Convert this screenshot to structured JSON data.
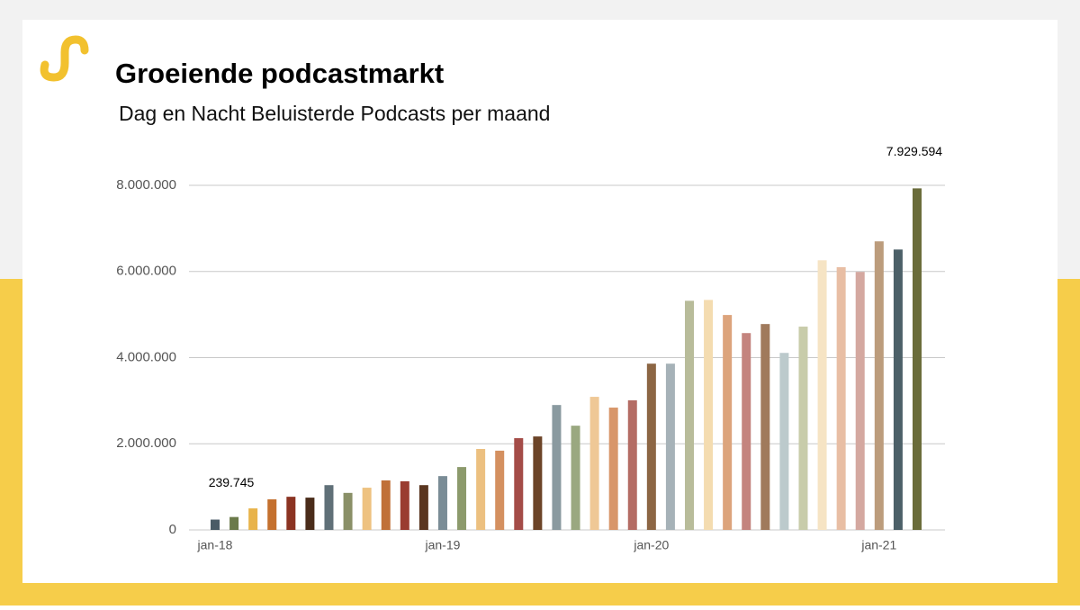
{
  "chart_data": {
    "type": "bar",
    "title": "Groeiende podcastmarkt",
    "subtitle": "Dag en Nacht Beluisterde Podcasts per maand",
    "categories": [
      "jan-18",
      null,
      null,
      null,
      null,
      null,
      null,
      null,
      null,
      null,
      null,
      null,
      "jan-19",
      null,
      null,
      null,
      null,
      null,
      null,
      null,
      null,
      null,
      null,
      "jan-20",
      null,
      null,
      null,
      null,
      null,
      null,
      null,
      null,
      null,
      null,
      null,
      "jan-21",
      null,
      null
    ],
    "values": [
      239745,
      300000,
      500000,
      710000,
      770000,
      750000,
      1040000,
      860000,
      980000,
      1150000,
      1130000,
      1040000,
      1250000,
      1460000,
      1880000,
      1840000,
      2130000,
      2170000,
      2900000,
      2420000,
      3090000,
      2840000,
      3010000,
      3860000,
      3860000,
      5320000,
      5340000,
      4990000,
      4570000,
      4780000,
      4110000,
      4720000,
      6260000,
      6100000,
      5990000,
      6700000,
      6510000,
      7929594
    ],
    "value_labels": [
      "239.745",
      null,
      null,
      null,
      null,
      null,
      null,
      null,
      null,
      null,
      null,
      null,
      null,
      null,
      null,
      null,
      null,
      null,
      null,
      null,
      null,
      null,
      null,
      null,
      null,
      null,
      null,
      null,
      null,
      null,
      null,
      null,
      null,
      null,
      null,
      null,
      null,
      "7.929.594"
    ],
    "colors": [
      "#4a5c66",
      "#6b7a4a",
      "#e8b34a",
      "#c4702e",
      "#8b3322",
      "#4a2c1a",
      "#607078",
      "#8a9068",
      "#eec280",
      "#c07038",
      "#9a3c30",
      "#5a3620",
      "#7a8c96",
      "#8c9a6c",
      "#ecc080",
      "#d49060",
      "#a44c48",
      "#6c4428",
      "#8a9aa0",
      "#9aa880",
      "#efc896",
      "#d8966a",
      "#b46c64",
      "#8c6644",
      "#a6b2b8",
      "#b8bc9a",
      "#f4dcb0",
      "#dca47c",
      "#c4847e",
      "#a07a5c",
      "#bccacc",
      "#c8ccaa",
      "#f6e4c4",
      "#e8bea4",
      "#d4a8a0",
      "#bc9c7c",
      "#4c6068",
      "#6a6c3a"
    ],
    "ylim": [
      0,
      8000000
    ],
    "yticks": [
      0,
      {
        "value": 2000000,
        "label": "2.000.000"
      },
      {
        "value": 4000000,
        "label": "4.000.000"
      },
      {
        "value": 6000000,
        "label": "6.000.000"
      },
      {
        "value": 8000000,
        "label": "8.000.000"
      }
    ],
    "grid": true
  }
}
